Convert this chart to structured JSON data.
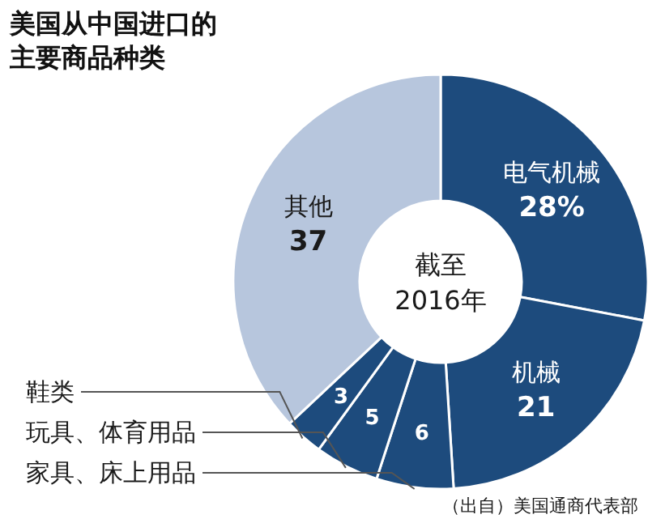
{
  "chart_data": {
    "type": "donut",
    "title": "美国从中国进口的主要商品种类",
    "categories": [
      "电气机械",
      "机械",
      "家具、床上用品",
      "玩具、体育用品",
      "鞋类",
      "其他"
    ],
    "values": [
      28,
      21,
      6,
      5,
      3,
      37
    ],
    "colors": [
      "#1d4b7d",
      "#1d4b7d",
      "#1d4b7d",
      "#1d4b7d",
      "#1d4b7d",
      "#b7c6dd"
    ],
    "value_labels": [
      "28%",
      "21",
      "6",
      "5",
      "3",
      "37"
    ],
    "annotations": [
      "截至 2016年",
      "（出自）美国通商代表部"
    ]
  }
}
